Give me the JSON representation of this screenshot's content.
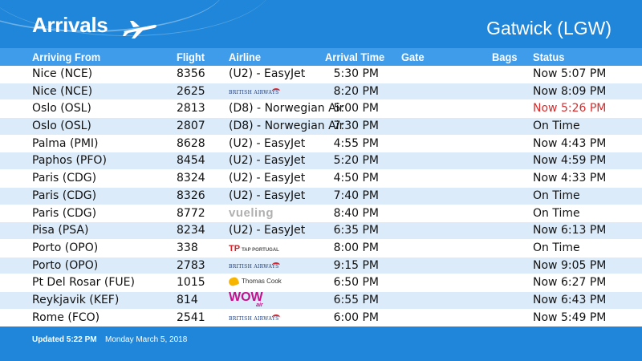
{
  "header": {
    "title": "Arrivals",
    "airport": "Gatwick (LGW)",
    "icon": "airplane-icon"
  },
  "columns": {
    "from": "Arriving From",
    "flight": "Flight",
    "airline": "Airline",
    "time": "Arrival Time",
    "gate": "Gate",
    "bags": "Bags",
    "status": "Status"
  },
  "rows": [
    {
      "from": "Nice (NCE)",
      "flight": "8356",
      "airline": "(U2) - EasyJet",
      "logo": "",
      "time": "5:30 PM",
      "status": "Now 5:07 PM",
      "delayed": false
    },
    {
      "from": "Nice (NCE)",
      "flight": "2625",
      "airline": "",
      "logo": "BRITISH AIRWAYS",
      "time": "8:20 PM",
      "status": "Now 8:09 PM",
      "delayed": false
    },
    {
      "from": "Oslo (OSL)",
      "flight": "2813",
      "airline": "(D8) - Norwegian Air",
      "logo": "",
      "time": "5:00 PM",
      "status": "Now 5:26 PM",
      "delayed": true
    },
    {
      "from": "Oslo (OSL)",
      "flight": "2807",
      "airline": "(D8) - Norwegian Air",
      "logo": "",
      "time": "7:30 PM",
      "status": "On Time",
      "delayed": false
    },
    {
      "from": "Palma (PMI)",
      "flight": "8628",
      "airline": "(U2) - EasyJet",
      "logo": "",
      "time": "4:55 PM",
      "status": "Now 4:43 PM",
      "delayed": false
    },
    {
      "from": "Paphos (PFO)",
      "flight": "8454",
      "airline": "(U2) - EasyJet",
      "logo": "",
      "time": "5:20 PM",
      "status": "Now 4:59 PM",
      "delayed": false
    },
    {
      "from": "Paris (CDG)",
      "flight": "8324",
      "airline": "(U2) - EasyJet",
      "logo": "",
      "time": "4:50 PM",
      "status": "Now 4:33 PM",
      "delayed": false
    },
    {
      "from": "Paris (CDG)",
      "flight": "8326",
      "airline": "(U2) - EasyJet",
      "logo": "",
      "time": "7:40 PM",
      "status": "On Time",
      "delayed": false
    },
    {
      "from": "Paris (CDG)",
      "flight": "8772",
      "airline": "",
      "logo": "vueling",
      "time": "8:40 PM",
      "status": "On Time",
      "delayed": false
    },
    {
      "from": "Pisa (PSA)",
      "flight": "8234",
      "airline": "(U2) - EasyJet",
      "logo": "",
      "time": "6:35 PM",
      "status": "Now 6:13 PM",
      "delayed": false
    },
    {
      "from": "Porto (OPO)",
      "flight": "338",
      "airline": "",
      "logo": "TAP PORTUGAL",
      "time": "8:00 PM",
      "status": "On Time",
      "delayed": false
    },
    {
      "from": "Porto (OPO)",
      "flight": "2783",
      "airline": "",
      "logo": "BRITISH AIRWAYS",
      "time": "9:15 PM",
      "status": "Now 9:05 PM",
      "delayed": false
    },
    {
      "from": "Pt Del Rosar (FUE)",
      "flight": "1015",
      "airline": "",
      "logo": "Thomas Cook",
      "time": "6:50 PM",
      "status": "Now 6:27 PM",
      "delayed": false
    },
    {
      "from": "Reykjavik (KEF)",
      "flight": "814",
      "airline": "",
      "logo": "WOW air",
      "time": "6:55 PM",
      "status": "Now 6:43 PM",
      "delayed": false
    },
    {
      "from": "Rome (FCO)",
      "flight": "2541",
      "airline": "",
      "logo": "BRITISH AIRWAYS",
      "time": "6:00 PM",
      "status": "Now 5:49 PM",
      "delayed": false
    }
  ],
  "footer": {
    "updated": "Updated 5:22 PM",
    "date": "Monday March 5, 2018"
  },
  "colors": {
    "background": "#1f86d9",
    "header_row": "#3f9ceb",
    "row_light": "#ffffff",
    "row_alt": "#dcebf9",
    "delayed": "#d62b2b"
  }
}
